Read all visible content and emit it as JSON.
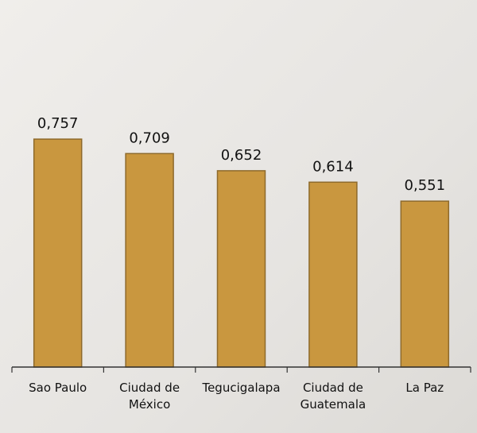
{
  "chart_data": {
    "type": "bar",
    "categories": [
      "Sao Paulo",
      "Ciudad de México",
      "Tegucigalapa",
      "Ciudad de Guatemala",
      "La Paz"
    ],
    "values": [
      0.757,
      0.709,
      0.652,
      0.614,
      0.551
    ],
    "value_labels": [
      "0,757",
      "0,709",
      "0,652",
      "0,614",
      "0,551"
    ],
    "color": "#c9973f",
    "ylim": [
      0,
      1
    ]
  }
}
